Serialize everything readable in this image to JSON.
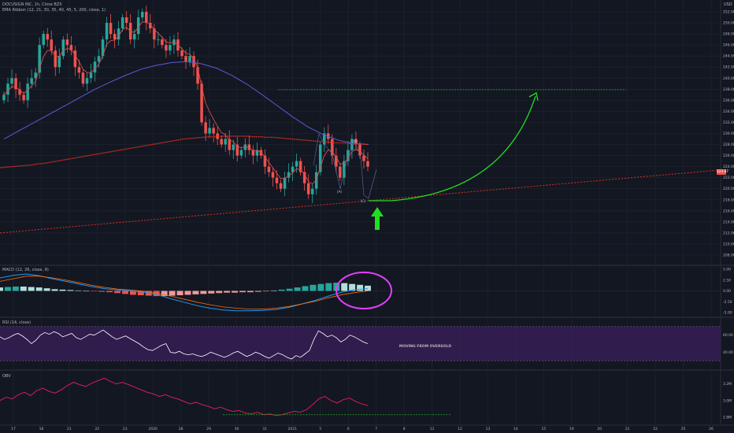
{
  "header": {
    "symbol_line": "DOCUSIGN INC, 1h, Close BZX",
    "indicator_line": "EMA Ribbon (12, 21, 30, 35, 40, 45, 5, 200, close, 1)",
    "currency": "USD"
  },
  "panes": {
    "macd_label": "MACD (12, 26, close, 9)",
    "rsi_label": "RSI (14, close)",
    "obv_label": "OBV",
    "rsi_annotation": "MOVING FROM OVERSOLD"
  },
  "wave_labels": {
    "a": "(A)",
    "b": "(B)",
    "c": "(C)"
  },
  "price_badge": "223.87",
  "colors": {
    "background": "#131722",
    "up_candle": "#26a69a",
    "down_candle": "#ef5350",
    "ema_fast": "#e04a4a",
    "ema_mid": "#5b5bd6",
    "ema_200": "#e0301e",
    "target_line": "#22aa22",
    "arrow": "#22dd22",
    "circle": "#e040fb",
    "rsi_band": "#3b1f5c",
    "rsi_text": "#e040fb"
  },
  "chart_data": [
    {
      "type": "candlestick",
      "title": "DOCUSIGN INC, 1h",
      "ylim": [
        207,
        253
      ],
      "y_ticks": [
        "252.00",
        "250.00",
        "248.00",
        "246.00",
        "244.00",
        "242.00",
        "240.00",
        "238.00",
        "236.00",
        "234.00",
        "232.00",
        "230.00",
        "228.00",
        "226.00",
        "224.00",
        "222.00",
        "220.00",
        "218.00",
        "216.00",
        "214.00",
        "212.00",
        "210.00",
        "208.00"
      ],
      "x_ticks": [
        "17",
        "18",
        "21",
        "22",
        "23",
        "2020",
        "28",
        "29",
        "30",
        "31",
        "2021",
        "5",
        "6",
        "7",
        "8",
        "11",
        "12",
        "13",
        "14",
        "15",
        "19",
        "20",
        "21",
        "22",
        "25",
        "26"
      ],
      "close": [
        237,
        239,
        240,
        238,
        237,
        236,
        239,
        240,
        241,
        246,
        248,
        247,
        245,
        242,
        244,
        247,
        246,
        245,
        242,
        241,
        239,
        240,
        241,
        243,
        244,
        247,
        250,
        248,
        247,
        249,
        251,
        250,
        247,
        248,
        251,
        252,
        250,
        249,
        247,
        247,
        246,
        245,
        246,
        247,
        245,
        244,
        243,
        244,
        242,
        239,
        232,
        230,
        231,
        230,
        229,
        228,
        229,
        227,
        228,
        226,
        227,
        228,
        227,
        226,
        227,
        226,
        224,
        223,
        222,
        221,
        220,
        222,
        223,
        224,
        225,
        223,
        221,
        219,
        220,
        223,
        228,
        230,
        229,
        226,
        224,
        222,
        225,
        227,
        229,
        228,
        226,
        225,
        224
      ],
      "ema_200": [
        223.8,
        223.9,
        224.0,
        224.1,
        224.2,
        224.3,
        224.5,
        224.6,
        224.8,
        225.0,
        225.2,
        225.4,
        225.6,
        225.8,
        226.0,
        226.2,
        226.4,
        226.6,
        226.8,
        227.0,
        227.2,
        227.4,
        227.6,
        227.8,
        228.0,
        228.2,
        228.4,
        228.6,
        228.8,
        229.0,
        229.1,
        229.2,
        229.3,
        229.4,
        229.4,
        229.5,
        229.5,
        229.5,
        229.5,
        229.5,
        229.4,
        229.4,
        229.3,
        229.3,
        229.2,
        229.1,
        229.0,
        228.9,
        228.8,
        228.7,
        228.6,
        228.5,
        228.4,
        228.3,
        228.3,
        228.2,
        228.1,
        228.1,
        228.0
      ],
      "ema_mid": [
        229.0,
        230.5,
        232.0,
        233.5,
        235.0,
        236.5,
        238.0,
        239.3,
        240.5,
        241.6,
        242.3,
        242.8,
        243.0,
        242.6,
        241.8,
        240.5,
        238.9,
        237.0,
        235.0,
        233.0,
        231.2,
        229.8,
        228.8,
        228.2,
        228.0
      ],
      "trendline_support": {
        "start": 212.0,
        "end": 223.4
      },
      "target_level": 237.9
    },
    {
      "type": "histogram",
      "title": "MACD (12, 26, close, 9)",
      "ylim": [
        -5,
        5
      ],
      "y_ticks": [
        "5.00",
        "2.50",
        "0.00",
        "-2.50",
        "-5.00"
      ],
      "histogram": [
        0.8,
        0.9,
        1.0,
        1.0,
        0.9,
        0.8,
        0.6,
        0.4,
        0.3,
        0.2,
        0.1,
        0.0,
        -0.1,
        -0.2,
        -0.3,
        -0.5,
        -0.7,
        -0.9,
        -1.0,
        -1.1,
        -1.2,
        -1.2,
        -1.1,
        -1.0,
        -0.9,
        -0.8,
        -0.7,
        -0.6,
        -0.5,
        -0.4,
        -0.4,
        -0.3,
        -0.3,
        -0.2,
        -0.1,
        0.1,
        0.3,
        0.5,
        0.8,
        1.1,
        1.4,
        1.6,
        1.8,
        1.9,
        1.8,
        1.6,
        1.4,
        1.2
      ],
      "macd_line": [
        3.0,
        3.6,
        3.9,
        3.5,
        2.8,
        2.2,
        1.6,
        1.0,
        0.5,
        0.2,
        0.0,
        -0.3,
        -0.9,
        -1.8,
        -2.6,
        -3.4,
        -4.0,
        -4.4,
        -4.6,
        -4.6,
        -4.5,
        -4.3,
        -3.8,
        -3.0,
        -2.2,
        -1.2,
        -0.3,
        0.3,
        0.5
      ],
      "signal_line": [
        2.2,
        2.8,
        3.4,
        3.4,
        3.0,
        2.5,
        1.9,
        1.3,
        0.8,
        0.4,
        0.2,
        -0.1,
        -0.6,
        -1.2,
        -1.9,
        -2.6,
        -3.2,
        -3.7,
        -4.0,
        -4.2,
        -4.2,
        -4.0,
        -3.6,
        -3.0,
        -2.4,
        -1.6,
        -0.9,
        -0.4,
        0.0
      ]
    },
    {
      "type": "line",
      "title": "RSI (14, close)",
      "ylim": [
        20,
        80
      ],
      "y_ticks": [
        "60.00",
        "40.00"
      ],
      "band": [
        30,
        70
      ],
      "values": [
        58,
        55,
        57,
        60,
        62,
        59,
        55,
        50,
        54,
        60,
        63,
        61,
        64,
        62,
        58,
        60,
        62,
        57,
        55,
        58,
        61,
        60,
        63,
        66,
        62,
        58,
        55,
        57,
        59,
        56,
        53,
        50,
        46,
        43,
        42,
        45,
        48,
        50,
        40,
        39,
        41,
        38,
        37,
        38,
        36,
        35,
        37,
        40,
        38,
        36,
        34,
        36,
        39,
        41,
        38,
        35,
        37,
        40,
        38,
        35,
        33,
        36,
        39,
        37,
        34,
        32,
        36,
        34,
        38,
        42,
        55,
        65,
        62,
        58,
        60,
        57,
        52,
        55,
        60,
        58,
        55,
        52,
        50
      ]
    },
    {
      "type": "line",
      "title": "OBV",
      "y_ticks": [
        "3.2M",
        "3.0M",
        "2.8M"
      ],
      "values": [
        3.0,
        3.04,
        3.02,
        3.07,
        3.1,
        3.06,
        3.12,
        3.15,
        3.11,
        3.09,
        3.13,
        3.18,
        3.22,
        3.19,
        3.17,
        3.21,
        3.24,
        3.27,
        3.23,
        3.2,
        3.22,
        3.19,
        3.16,
        3.13,
        3.1,
        3.08,
        3.05,
        3.07,
        3.04,
        3.02,
        2.99,
        2.96,
        2.98,
        2.95,
        2.93,
        2.9,
        2.92,
        2.89,
        2.87,
        2.88,
        2.85,
        2.84,
        2.86,
        2.83,
        2.84,
        2.82,
        2.83,
        2.85,
        2.87,
        2.86,
        2.89,
        2.95,
        3.02,
        3.05,
        3.0,
        2.97,
        3.01,
        3.03,
        2.99,
        2.96,
        2.94
      ],
      "reference_level": 2.83
    }
  ]
}
